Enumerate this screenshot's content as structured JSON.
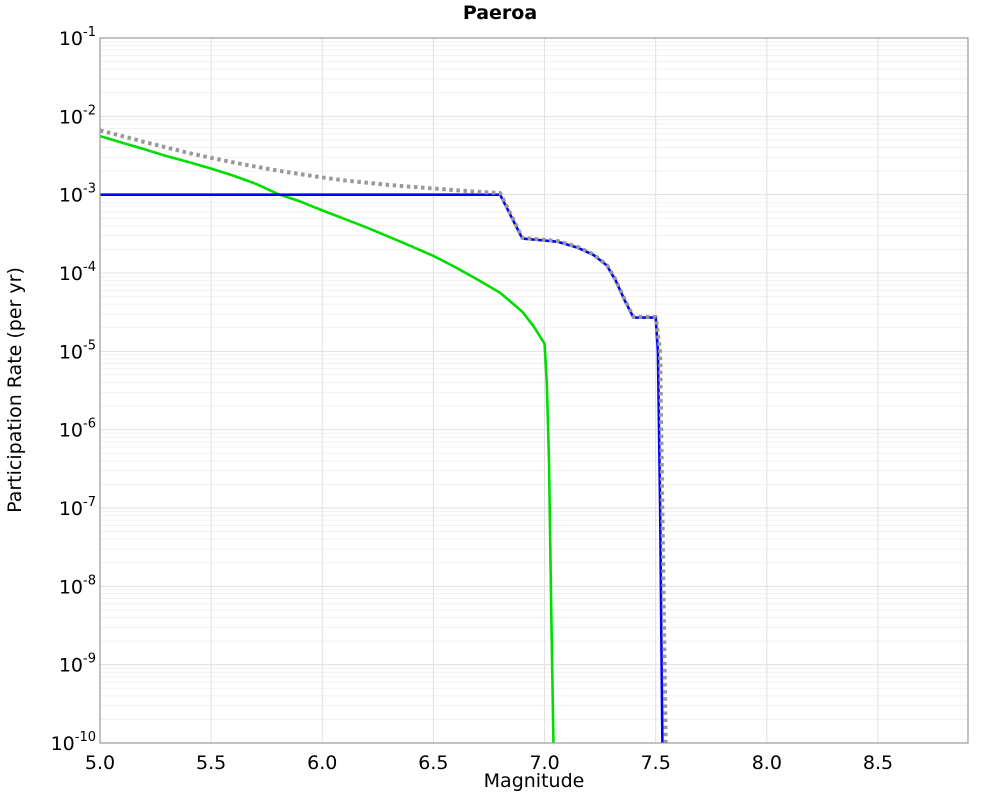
{
  "chart_data": {
    "type": "line",
    "title": "Paeroa",
    "xlabel": "Magnitude",
    "ylabel": "Participation Rate (per yr)",
    "xlim": [
      5.0,
      8.905
    ],
    "ylim": [
      1e-10,
      0.1
    ],
    "x_scale": "linear",
    "y_scale": "log",
    "grid": "major-and-log-minor",
    "legend": "none",
    "x_ticks": [
      {
        "v": 5.0,
        "label": "5.0"
      },
      {
        "v": 5.5,
        "label": "5.5"
      },
      {
        "v": 6.0,
        "label": "6.0"
      },
      {
        "v": 6.5,
        "label": "6.5"
      },
      {
        "v": 7.0,
        "label": "7.0"
      },
      {
        "v": 7.5,
        "label": "7.5"
      },
      {
        "v": 8.0,
        "label": "8.0"
      },
      {
        "v": 8.5,
        "label": "8.5"
      }
    ],
    "y_tick_exponents": [
      -1,
      -2,
      -3,
      -4,
      -5,
      -6,
      -7,
      -8,
      -9,
      -10
    ],
    "colors": {
      "grid_major": "#e0e0e0",
      "grid_minor": "#f1f1f1",
      "spine": "#999999",
      "text": "#000000"
    },
    "series": [
      {
        "name": "green-curve",
        "color": "#00dd00",
        "style": "solid",
        "width": 2.6,
        "points": [
          [
            5.0,
            0.0056
          ],
          [
            5.1,
            0.0046
          ],
          [
            5.2,
            0.0038
          ],
          [
            5.3,
            0.0031
          ],
          [
            5.4,
            0.0026
          ],
          [
            5.5,
            0.00215
          ],
          [
            5.6,
            0.00175
          ],
          [
            5.7,
            0.00138
          ],
          [
            5.8,
            0.00102
          ],
          [
            5.9,
            0.00082
          ],
          [
            6.0,
            0.00063
          ],
          [
            6.1,
            0.00049
          ],
          [
            6.2,
            0.00038
          ],
          [
            6.3,
            0.00029
          ],
          [
            6.4,
            0.00022
          ],
          [
            6.5,
            0.000165
          ],
          [
            6.6,
            0.000118
          ],
          [
            6.7,
            8.2e-05
          ],
          [
            6.8,
            5.6e-05
          ],
          [
            6.9,
            3.2e-05
          ],
          [
            6.95,
            2.1e-05
          ],
          [
            7.0,
            1.25e-05
          ],
          [
            7.01,
            4e-06
          ],
          [
            7.02,
            4e-07
          ],
          [
            7.03,
            5e-09
          ],
          [
            7.04,
            1e-10
          ]
        ]
      },
      {
        "name": "blue-curve",
        "color": "#0000ff",
        "style": "solid",
        "width": 2.6,
        "points": [
          [
            5.0,
            0.001
          ],
          [
            6.8,
            0.001
          ],
          [
            6.9,
            0.000275
          ],
          [
            7.0,
            0.00026
          ],
          [
            7.06,
            0.00025
          ],
          [
            7.15,
            0.00021
          ],
          [
            7.22,
            0.00017
          ],
          [
            7.28,
            0.000125
          ],
          [
            7.32,
            8e-05
          ],
          [
            7.36,
            4.5e-05
          ],
          [
            7.4,
            2.7e-05
          ],
          [
            7.5,
            2.7e-05
          ],
          [
            7.51,
            1e-05
          ],
          [
            7.52,
            1e-07
          ],
          [
            7.53,
            1e-10
          ]
        ]
      },
      {
        "name": "gray-dotted-curve",
        "color": "#999999",
        "style": "dotted",
        "width": 4,
        "points": [
          [
            5.0,
            0.0066
          ],
          [
            5.1,
            0.0056
          ],
          [
            5.2,
            0.0047
          ],
          [
            5.3,
            0.004
          ],
          [
            5.4,
            0.0034
          ],
          [
            5.5,
            0.00295
          ],
          [
            5.6,
            0.00258
          ],
          [
            5.7,
            0.00228
          ],
          [
            5.8,
            0.00203
          ],
          [
            5.9,
            0.00183
          ],
          [
            6.0,
            0.00166
          ],
          [
            6.1,
            0.00152
          ],
          [
            6.2,
            0.00142
          ],
          [
            6.3,
            0.00133
          ],
          [
            6.4,
            0.00126
          ],
          [
            6.5,
            0.0012
          ],
          [
            6.6,
            0.00114
          ],
          [
            6.7,
            0.00109
          ],
          [
            6.8,
            0.00105
          ],
          [
            6.9,
            0.00028
          ],
          [
            7.0,
            0.000265
          ],
          [
            7.06,
            0.000255
          ],
          [
            7.15,
            0.000215
          ],
          [
            7.22,
            0.000172
          ],
          [
            7.28,
            0.000127
          ],
          [
            7.32,
            8.2e-05
          ],
          [
            7.36,
            4.6e-05
          ],
          [
            7.4,
            2.75e-05
          ],
          [
            7.5,
            2.75e-05
          ],
          [
            7.52,
            1e-05
          ],
          [
            7.53,
            1e-07
          ],
          [
            7.545,
            1e-10
          ]
        ]
      }
    ]
  }
}
